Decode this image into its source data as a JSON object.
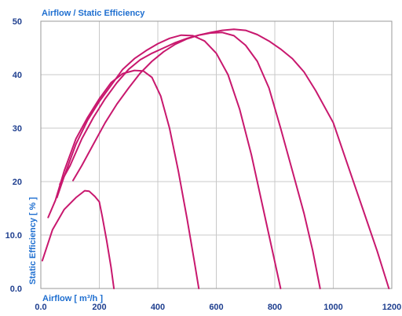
{
  "chart_data": {
    "type": "line",
    "title": "Airflow / Static Efficiency",
    "xlabel": "Airflow [ m³/h ]",
    "ylabel": "Static Efficiency [ % ]",
    "xlim": [
      0,
      1200
    ],
    "ylim": [
      0,
      50
    ],
    "x_ticks": [
      {
        "value": 0,
        "label": "0.0"
      },
      {
        "value": 200,
        "label": "200"
      },
      {
        "value": 400,
        "label": "400"
      },
      {
        "value": 600,
        "label": "600"
      },
      {
        "value": 800,
        "label": "800"
      },
      {
        "value": 1000,
        "label": "1000"
      },
      {
        "value": 1200,
        "label": "1200"
      }
    ],
    "y_ticks": [
      {
        "value": 0,
        "label": "0.0"
      },
      {
        "value": 10,
        "label": "10.0"
      },
      {
        "value": 20,
        "label": "20"
      },
      {
        "value": 30,
        "label": "30"
      },
      {
        "value": 40,
        "label": "40"
      },
      {
        "value": 50,
        "label": "50"
      }
    ],
    "grid": true,
    "line_color": "#c8186e",
    "series": [
      {
        "points": [
          [
            5,
            5.2
          ],
          [
            40,
            11
          ],
          [
            80,
            14.8
          ],
          [
            120,
            17
          ],
          [
            150,
            18.3
          ],
          [
            165,
            18.2
          ],
          [
            185,
            17.2
          ],
          [
            200,
            16.2
          ],
          [
            210,
            13.5
          ],
          [
            225,
            9
          ],
          [
            240,
            4
          ],
          [
            250,
            0
          ]
        ]
      },
      {
        "points": [
          [
            25,
            13.3
          ],
          [
            50,
            16.5
          ],
          [
            80,
            22
          ],
          [
            120,
            28
          ],
          [
            160,
            32
          ],
          [
            200,
            35.5
          ],
          [
            240,
            38.5
          ],
          [
            280,
            40.2
          ],
          [
            320,
            40.8
          ],
          [
            350,
            40.7
          ],
          [
            380,
            39.5
          ],
          [
            410,
            36
          ],
          [
            440,
            30
          ],
          [
            470,
            22
          ],
          [
            500,
            13
          ],
          [
            525,
            5
          ],
          [
            540,
            0
          ]
        ]
      },
      {
        "points": [
          [
            55,
            17
          ],
          [
            80,
            21
          ],
          [
            120,
            27
          ],
          [
            160,
            31.5
          ],
          [
            200,
            35
          ],
          [
            240,
            38
          ],
          [
            280,
            41
          ],
          [
            320,
            43
          ],
          [
            360,
            44.5
          ],
          [
            400,
            45.8
          ],
          [
            440,
            46.8
          ],
          [
            480,
            47.4
          ],
          [
            520,
            47.3
          ],
          [
            560,
            46.3
          ],
          [
            600,
            44
          ],
          [
            640,
            40
          ],
          [
            680,
            33.5
          ],
          [
            720,
            25
          ],
          [
            760,
            15
          ],
          [
            800,
            5
          ],
          [
            820,
            0
          ]
        ]
      },
      {
        "points": [
          [
            65,
            19.5
          ],
          [
            100,
            23
          ],
          [
            140,
            28
          ],
          [
            180,
            32
          ],
          [
            220,
            35.5
          ],
          [
            260,
            38.5
          ],
          [
            300,
            41
          ],
          [
            340,
            42.8
          ],
          [
            380,
            44
          ],
          [
            420,
            45
          ],
          [
            460,
            46
          ],
          [
            500,
            46.8
          ],
          [
            540,
            47.4
          ],
          [
            580,
            47.8
          ],
          [
            620,
            47.9
          ],
          [
            660,
            47.3
          ],
          [
            700,
            45.5
          ],
          [
            740,
            42.5
          ],
          [
            780,
            37.5
          ],
          [
            820,
            30
          ],
          [
            860,
            22
          ],
          [
            900,
            14
          ],
          [
            930,
            7
          ],
          [
            955,
            0
          ]
        ]
      },
      {
        "points": [
          [
            110,
            20.2
          ],
          [
            140,
            23
          ],
          [
            180,
            27
          ],
          [
            220,
            31
          ],
          [
            260,
            34.5
          ],
          [
            300,
            37.5
          ],
          [
            340,
            40.3
          ],
          [
            380,
            42.5
          ],
          [
            420,
            44.3
          ],
          [
            460,
            45.7
          ],
          [
            500,
            46.7
          ],
          [
            540,
            47.4
          ],
          [
            580,
            47.9
          ],
          [
            620,
            48.3
          ],
          [
            660,
            48.5
          ],
          [
            700,
            48.3
          ],
          [
            740,
            47.5
          ],
          [
            780,
            46.3
          ],
          [
            820,
            44.8
          ],
          [
            860,
            43
          ],
          [
            900,
            40.5
          ],
          [
            940,
            37
          ],
          [
            1000,
            31
          ],
          [
            1050,
            23
          ],
          [
            1100,
            15
          ],
          [
            1150,
            7
          ],
          [
            1190,
            0
          ]
        ]
      }
    ]
  }
}
